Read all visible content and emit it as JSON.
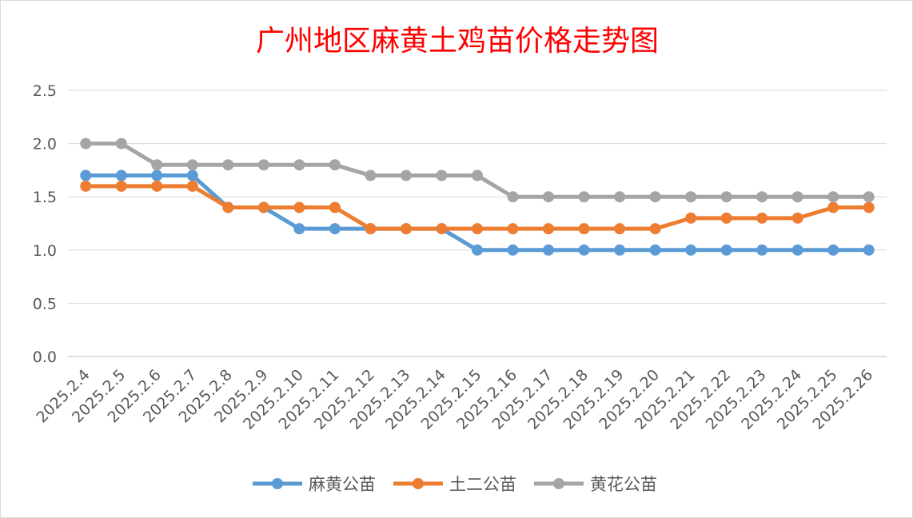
{
  "chart_data": {
    "type": "line",
    "title": "广州地区麻黄土鸡苗价格走势图",
    "xlabel": "",
    "ylabel": "",
    "ylim": [
      0,
      2.5
    ],
    "yticks": [
      "0.0",
      "0.5",
      "1.0",
      "1.5",
      "2.0",
      "2.5"
    ],
    "grid": true,
    "legend_position": "bottom",
    "categories": [
      "2025.2.4",
      "2025.2.5",
      "2025.2.6",
      "2025.2.7",
      "2025.2.8",
      "2025.2.9",
      "2025.2.10",
      "2025.2.11",
      "2025.2.12",
      "2025.2.13",
      "2025.2.14",
      "2025.2.15",
      "2025.2.16",
      "2025.2.17",
      "2025.2.18",
      "2025.2.19",
      "2025.2.20",
      "2025.2.21",
      "2025.2.22",
      "2025.2.23",
      "2025.2.24",
      "2025.2.25",
      "2025.2.26"
    ],
    "series": [
      {
        "name": "麻黄公苗",
        "color": "#5b9bd5",
        "values": [
          1.7,
          1.7,
          1.7,
          1.7,
          1.4,
          1.4,
          1.2,
          1.2,
          1.2,
          1.2,
          1.2,
          1.0,
          1.0,
          1.0,
          1.0,
          1.0,
          1.0,
          1.0,
          1.0,
          1.0,
          1.0,
          1.0,
          1.0
        ]
      },
      {
        "name": "土二公苗",
        "color": "#ed7d31",
        "values": [
          1.6,
          1.6,
          1.6,
          1.6,
          1.4,
          1.4,
          1.4,
          1.4,
          1.2,
          1.2,
          1.2,
          1.2,
          1.2,
          1.2,
          1.2,
          1.2,
          1.2,
          1.3,
          1.3,
          1.3,
          1.3,
          1.4,
          1.4
        ]
      },
      {
        "name": "黄花公苗",
        "color": "#a5a5a5",
        "values": [
          2.0,
          2.0,
          1.8,
          1.8,
          1.8,
          1.8,
          1.8,
          1.8,
          1.7,
          1.7,
          1.7,
          1.7,
          1.5,
          1.5,
          1.5,
          1.5,
          1.5,
          1.5,
          1.5,
          1.5,
          1.5,
          1.5,
          1.5
        ]
      }
    ]
  }
}
